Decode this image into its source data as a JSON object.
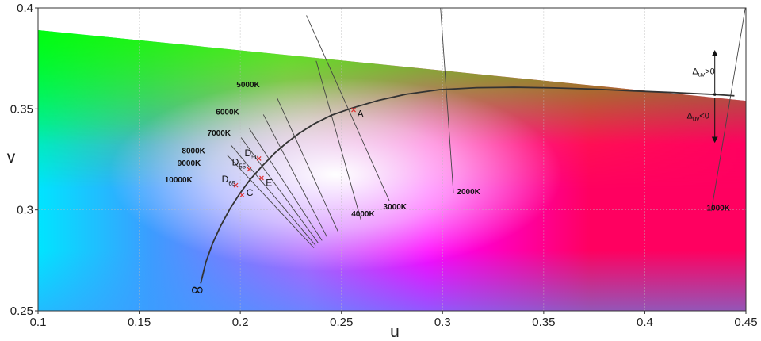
{
  "chart_data": {
    "type": "line",
    "title": "",
    "xlabel": "u",
    "ylabel": "v",
    "xlim": [
      0.1,
      0.45
    ],
    "ylim": [
      0.25,
      0.4
    ],
    "xticks": [
      {
        "value": 0.1,
        "label": "0.1"
      },
      {
        "value": 0.15,
        "label": "0.15"
      },
      {
        "value": 0.2,
        "label": "0.2"
      },
      {
        "value": 0.25,
        "label": "0.25"
      },
      {
        "value": 0.3,
        "label": "0.3"
      },
      {
        "value": 0.35,
        "label": "0.35"
      },
      {
        "value": 0.4,
        "label": "0.4"
      },
      {
        "value": 0.45,
        "label": "0.45"
      }
    ],
    "yticks": [
      {
        "value": 0.25,
        "label": "0.25"
      },
      {
        "value": 0.3,
        "label": "0.3"
      },
      {
        "value": 0.35,
        "label": "0.35"
      },
      {
        "value": 0.4,
        "label": "0.4"
      }
    ],
    "grid": true,
    "background_colors": [
      "#00ff00",
      "#00e5ff",
      "#3c9cff",
      "#ffffff",
      "#ffe000",
      "#ff7a00",
      "#ff0060",
      "#ff00ff",
      "#b060ff"
    ],
    "spectral_locus": [
      [
        0.1,
        0.389
      ],
      [
        0.45,
        0.354
      ]
    ],
    "planckian_locus": {
      "name": "",
      "color": "#333333",
      "points": [
        [
          0.1804,
          0.2636
        ],
        [
          0.183,
          0.2742
        ],
        [
          0.1863,
          0.2834
        ],
        [
          0.1903,
          0.2921
        ],
        [
          0.1948,
          0.3004
        ],
        [
          0.1999,
          0.3083
        ],
        [
          0.205,
          0.3152
        ],
        [
          0.2108,
          0.3217
        ],
        [
          0.2168,
          0.3279
        ],
        [
          0.2231,
          0.3334
        ],
        [
          0.2294,
          0.3381
        ],
        [
          0.2365,
          0.3426
        ],
        [
          0.2451,
          0.3469
        ],
        [
          0.2552,
          0.3504
        ],
        [
          0.2682,
          0.3542
        ],
        [
          0.2822,
          0.3573
        ],
        [
          0.2985,
          0.3595
        ],
        [
          0.3169,
          0.3605
        ],
        [
          0.3353,
          0.3607
        ],
        [
          0.355,
          0.3604
        ],
        [
          0.3747,
          0.3598
        ],
        [
          0.3943,
          0.3589
        ],
        [
          0.4139,
          0.3581
        ],
        [
          0.4334,
          0.3572
        ],
        [
          0.4443,
          0.3565
        ]
      ]
    },
    "isotherms": [
      {
        "label": "1000K",
        "points": [
          [
            0.4497,
            0.4
          ],
          [
            0.4329,
            0.2994
          ]
        ],
        "label_at": [
          0.4306,
          0.2997
        ]
      },
      {
        "label": "2000K",
        "points": [
          [
            0.299,
            0.4
          ],
          [
            0.3054,
            0.3082
          ]
        ],
        "label_at": [
          0.3071,
          0.3077
        ]
      },
      {
        "label": "3000K",
        "points": [
          [
            0.2327,
            0.3963
          ],
          [
            0.2738,
            0.3042
          ]
        ],
        "label_at": [
          0.2707,
          0.3002
        ]
      },
      {
        "label": "4000K",
        "points": [
          [
            0.2375,
            0.3738
          ],
          [
            0.2597,
            0.2948
          ]
        ],
        "label_at": [
          0.2549,
          0.2967
        ]
      },
      {
        "label": "5000K",
        "points": [
          [
            0.2182,
            0.3554
          ],
          [
            0.2483,
            0.2893
          ]
        ],
        "label_at": [
          0.1981,
          0.3608
        ]
      },
      {
        "label": "6000K",
        "points": [
          [
            0.2114,
            0.3472
          ],
          [
            0.2429,
            0.2865
          ]
        ],
        "label_at": [
          0.1879,
          0.3471
        ]
      },
      {
        "label": "7000K",
        "points": [
          [
            0.2045,
            0.3402
          ],
          [
            0.2404,
            0.2848
          ]
        ],
        "label_at": [
          0.1837,
          0.3368
        ]
      },
      {
        "label": "8000K",
        "points": [
          [
            0.2004,
            0.3358
          ],
          [
            0.2386,
            0.2835
          ]
        ],
        "label_at": [
          0.1711,
          0.328
        ]
      },
      {
        "label": "9000K",
        "points": [
          [
            0.1953,
            0.3322
          ],
          [
            0.2372,
            0.2824
          ]
        ],
        "label_at": [
          0.1689,
          0.3218
        ]
      },
      {
        "label": "10000K",
        "points": [
          [
            0.1934,
            0.3273
          ],
          [
            0.2364,
            0.2812
          ]
        ],
        "label_at": [
          0.1626,
          0.3137
        ]
      }
    ],
    "points": [
      {
        "label": "A",
        "sub": "",
        "u": 0.256,
        "v": 0.3495,
        "label_u": 0.2578,
        "label_v": 0.3461
      },
      {
        "label": "D",
        "sub": "50",
        "u": 0.2092,
        "v": 0.3254,
        "label_u": 0.2021,
        "label_v": 0.3266
      },
      {
        "label": "D",
        "sub": "55",
        "u": 0.2044,
        "v": 0.3201,
        "label_u": 0.1959,
        "label_v": 0.3221
      },
      {
        "label": "E",
        "sub": "",
        "u": 0.2105,
        "v": 0.3158,
        "label_u": 0.2126,
        "label_v": 0.3118
      },
      {
        "label": "D",
        "sub": "65",
        "u": 0.1978,
        "v": 0.3122,
        "label_u": 0.1908,
        "label_v": 0.3137
      },
      {
        "label": "C",
        "sub": "",
        "u": 0.2009,
        "v": 0.3073,
        "label_u": 0.203,
        "label_v": 0.307
      }
    ],
    "infinity_label": "∞",
    "infinity_at": [
      0.1787,
      0.26
    ],
    "duv_annotations": [
      {
        "label": "Δ",
        "sub": "uv",
        "suffix": ">0",
        "label_at": [
          0.4235,
          0.3673
        ]
      },
      {
        "label": "Δ",
        "sub": "uv",
        "suffix": "<0",
        "label_at": [
          0.4208,
          0.3453
        ]
      }
    ],
    "duv_arrow": {
      "u": 0.4346,
      "v_start": 0.3572,
      "v_up": 0.3776,
      "v_down": 0.3347
    }
  }
}
